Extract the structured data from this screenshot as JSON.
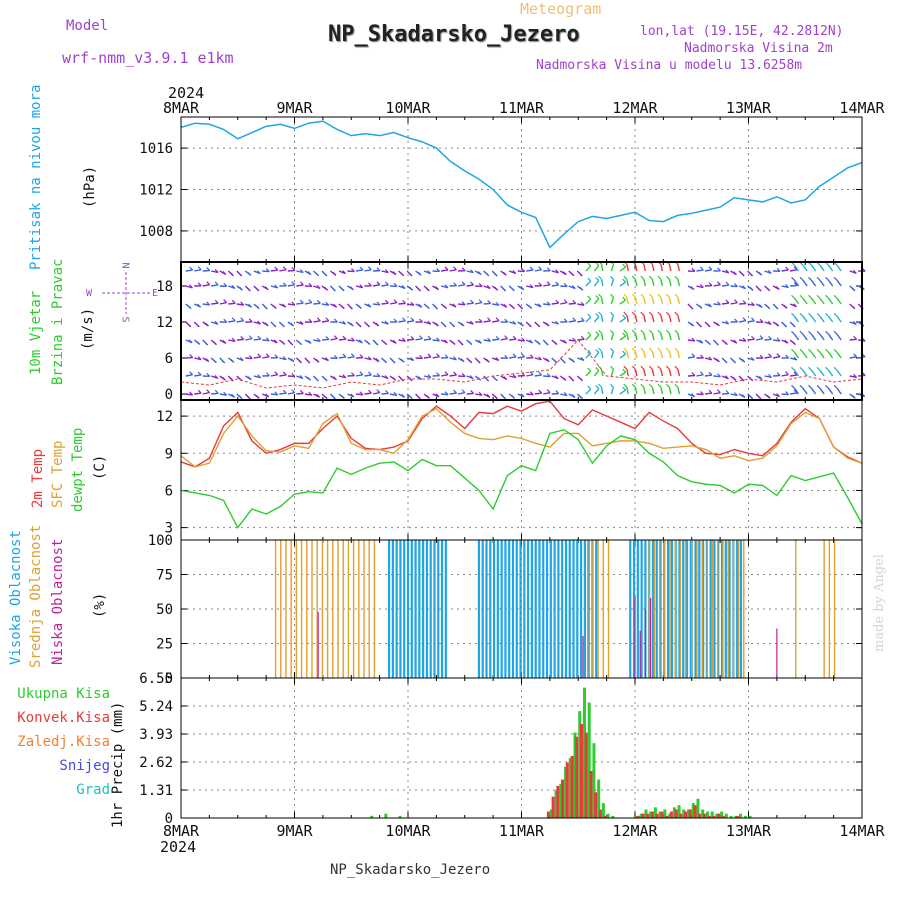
{
  "header": {
    "model_label": "Model",
    "model_name": "wrf-nmm_v3.9.1 e1km",
    "meteogram_label": "Meteogram",
    "station_title": "NP_Skadarsko_Jezero",
    "lonlat": "lon,lat (19.15E, 42.2812N)",
    "altitude": "Nadmorska Visina 2m",
    "model_altitude": "Nadmorska Visina u modelu 13.6258m",
    "footer_station": "NP_Skadarsko_Jezero",
    "watermark": "made by Angel"
  },
  "colors": {
    "pressure": "#1ea5e6",
    "temp": "#e83a3a",
    "sfc_temp": "#e0a030",
    "dewpt": "#2ecc2e",
    "high_cloud": "#1ea5e6",
    "mid_cloud": "#e0a030",
    "low_cloud": "#c0209a",
    "total_precip": "#2ecc2e",
    "conv_precip": "#e83a3a",
    "frz_precip": "#f08030",
    "snow": "#4848e0",
    "hail": "#20c0c0",
    "wind_label": "#2ecc2e",
    "wind_compass": "#a040d0"
  },
  "time_axis": {
    "year": "2024",
    "ticks": [
      "8MAR",
      "9MAR",
      "10MAR",
      "11MAR",
      "12MAR",
      "13MAR",
      "14MAR"
    ]
  },
  "chart_data": [
    {
      "type": "line",
      "ylabel_series": "Pritisak na nivou mora",
      "ylabel_unit": "(hPa)",
      "ylim": [
        1005,
        1019
      ],
      "yticks": [
        "1008",
        "1012",
        "1016"
      ],
      "ytick_values": [
        1008,
        1012,
        1016
      ],
      "x_hours": [
        0,
        3,
        6,
        9,
        12,
        15,
        18,
        21,
        24,
        27,
        30,
        33,
        36,
        39,
        42,
        45,
        48,
        51,
        54,
        57,
        60,
        63,
        66,
        69,
        72,
        75,
        78,
        81,
        84,
        87,
        90,
        93,
        96,
        99,
        102,
        105,
        108,
        111,
        114,
        117,
        120,
        123,
        126,
        129,
        132,
        135,
        138,
        141,
        144
      ],
      "series": [
        {
          "values": [
            1018,
            1018.4,
            1018.3,
            1017.8,
            1016.9,
            1017.5,
            1018.1,
            1018.3,
            1017.9,
            1018.4,
            1018.6,
            1017.8,
            1017.2,
            1017.4,
            1017.2,
            1017.5,
            1017.0,
            1016.6,
            1016.0,
            1014.7,
            1013.8,
            1013.0,
            1012.0,
            1010.5,
            1009.8,
            1009.3,
            1006.4,
            1007.7,
            1008.9,
            1009.4,
            1009.2,
            1009.5,
            1009.8,
            1009.0,
            1008.9,
            1009.5,
            1009.7,
            1010.0,
            1010.3,
            1011.2,
            1011.0,
            1010.8,
            1011.3,
            1010.7,
            1011.0,
            1012.3,
            1013.2,
            1014.1,
            1014.6
          ]
        }
      ]
    },
    {
      "type": "barbs",
      "ylabel_series": [
        "10m Vjetar",
        "Brzina i Pravac"
      ],
      "ylabel_unit": "(m/s)",
      "compass": [
        "N",
        "E",
        "W",
        "S"
      ],
      "ylim": [
        -1,
        22
      ],
      "yticks": [
        "0",
        "6",
        "12",
        "18"
      ],
      "ytick_values": [
        0,
        6,
        12,
        18
      ],
      "x_hours": [
        0,
        6,
        12,
        18,
        24,
        30,
        36,
        42,
        48,
        54,
        60,
        66,
        72,
        78,
        84,
        90,
        96,
        102,
        108,
        114,
        120,
        126,
        132,
        138,
        144
      ],
      "speed_ms": [
        2.0,
        1.5,
        2.5,
        1.0,
        1.5,
        1.0,
        2.0,
        1.5,
        2.5,
        2.5,
        2.0,
        3.0,
        3.5,
        4.0,
        9.0,
        3.0,
        2.5,
        2.0,
        2.0,
        1.5,
        2.5,
        2.0,
        3.0,
        2.0,
        2.5
      ]
    },
    {
      "type": "line",
      "ylabel_series": [
        "2m Temp",
        "SFC Temp",
        "dewpt Temp"
      ],
      "ylabel_unit": "(C)",
      "ylim": [
        2,
        13.3
      ],
      "yticks": [
        "3",
        "6",
        "9",
        "12"
      ],
      "ytick_values": [
        3,
        6,
        9,
        12
      ],
      "x_hours": [
        0,
        3,
        6,
        9,
        12,
        15,
        18,
        21,
        24,
        27,
        30,
        33,
        36,
        39,
        42,
        45,
        48,
        51,
        54,
        57,
        60,
        63,
        66,
        69,
        72,
        75,
        78,
        81,
        84,
        87,
        90,
        93,
        96,
        99,
        102,
        105,
        108,
        111,
        114,
        117,
        120,
        123,
        126,
        129,
        132,
        135,
        138,
        141,
        144
      ],
      "series": [
        {
          "name": "2m Temp",
          "values": [
            8.3,
            7.9,
            8.6,
            11.2,
            12.3,
            10.0,
            9.0,
            9.3,
            9.8,
            9.8,
            11.0,
            12.0,
            10.2,
            9.4,
            9.3,
            9.5,
            10.0,
            11.8,
            12.8,
            12.0,
            11.0,
            12.3,
            12.2,
            12.8,
            12.4,
            13.0,
            13.2,
            11.8,
            11.3,
            12.5,
            12.0,
            11.5,
            11.0,
            12.3,
            11.6,
            11.0,
            9.8,
            9.0,
            8.9,
            9.3,
            9.0,
            8.8,
            9.8,
            11.5,
            12.6,
            11.8,
            9.5,
            8.7,
            8.2
          ]
        },
        {
          "name": "SFC Temp",
          "values": [
            8.8,
            7.9,
            8.2,
            10.6,
            12.0,
            10.4,
            9.2,
            9.1,
            9.6,
            9.4,
            11.4,
            12.2,
            9.8,
            9.3,
            9.3,
            9.0,
            10.1,
            12.0,
            12.6,
            11.5,
            10.6,
            10.2,
            10.1,
            10.4,
            10.2,
            9.8,
            9.5,
            10.6,
            10.6,
            9.6,
            9.8,
            10.0,
            10.0,
            9.8,
            9.4,
            9.5,
            9.6,
            9.3,
            8.6,
            8.8,
            8.4,
            8.6,
            9.6,
            11.4,
            12.3,
            11.8,
            9.5,
            8.6,
            8.2
          ]
        },
        {
          "name": "dewpt Temp",
          "values": [
            6.0,
            5.8,
            5.6,
            5.2,
            3.0,
            4.5,
            4.1,
            4.7,
            5.7,
            5.9,
            5.8,
            7.8,
            7.3,
            7.8,
            8.2,
            8.3,
            7.6,
            8.5,
            8.0,
            8.0,
            7.0,
            6.0,
            4.5,
            7.2,
            8.0,
            7.6,
            10.6,
            10.9,
            10.1,
            8.2,
            9.6,
            10.4,
            10.1,
            9.0,
            8.3,
            7.2,
            6.7,
            6.5,
            6.4,
            5.8,
            6.5,
            6.4,
            5.6,
            7.2,
            6.8,
            7.1,
            7.4,
            5.4,
            3.3
          ]
        }
      ]
    },
    {
      "type": "bar",
      "ylabel_series": [
        "Visoka Oblacnost",
        "Srednja Oblacnost",
        "Niska Oblacnost"
      ],
      "ylabel_unit": "(%)",
      "ylim": [
        0,
        100
      ],
      "yticks": [
        "0",
        "25",
        "50",
        "75",
        "100"
      ],
      "ytick_values": [
        0,
        25,
        50,
        75,
        100
      ],
      "series": [
        {
          "name": "Visoka Oblacnost",
          "segments_hours": [
            [
              44,
              56
            ],
            [
              63,
              88
            ],
            [
              95,
              108
            ],
            [
              108,
              119
            ]
          ],
          "value": 100
        },
        {
          "name": "Srednja Oblacnost",
          "segments_hours": [
            [
              20,
              42
            ],
            [
              86,
              91
            ],
            [
              99,
              107
            ],
            [
              108,
              120
            ],
            [
              130,
              131
            ],
            [
              136,
              139
            ]
          ],
          "value": 100
        },
        {
          "name": "Niska Oblacnost",
          "segments_hours": [
            [
              29,
              29
            ],
            [
              85,
              86
            ],
            [
              96,
              100
            ],
            [
              126,
              127
            ]
          ],
          "value": 60
        }
      ]
    },
    {
      "type": "bar",
      "ylabel_series": [
        "Ukupna Kisa",
        "Konvek.Kisa",
        "Zaledj.Kisa",
        "Snijeg",
        "Grad"
      ],
      "ylabel_unit": "1hr Precip (mm)",
      "ylim": [
        0,
        6.55
      ],
      "yticks": [
        "0",
        "1.31",
        "2.62",
        "3.93",
        "5.24",
        "6.55"
      ],
      "ytick_values": [
        0,
        1.31,
        2.62,
        3.93,
        5.24,
        6.55
      ],
      "x_hours": [
        40,
        43,
        46,
        78,
        79,
        80,
        81,
        82,
        83,
        84,
        85,
        86,
        87,
        88,
        89,
        90,
        91,
        96,
        97,
        98,
        99,
        100,
        101,
        102,
        103,
        104,
        105,
        106,
        107,
        108,
        109,
        110,
        111,
        112,
        113,
        114,
        115,
        116,
        117,
        118,
        119,
        120
      ],
      "series": [
        {
          "name": "Ukupna Kisa",
          "values": [
            0.1,
            0.2,
            0.1,
            0.4,
            1.3,
            1.6,
            2.4,
            2.8,
            4.0,
            5.0,
            6.1,
            5.4,
            3.5,
            1.8,
            0.7,
            0.2,
            0.1,
            0.1,
            0.2,
            0.4,
            0.3,
            0.5,
            0.3,
            0.4,
            0.2,
            0.5,
            0.6,
            0.4,
            0.4,
            0.7,
            0.9,
            0.4,
            0.3,
            0.3,
            0.2,
            0.3,
            0.2,
            0.1,
            0.1,
            0.2,
            0.1,
            0.1
          ]
        },
        {
          "name": "Konvek.Kisa",
          "values": [
            0,
            0,
            0,
            0.3,
            1.0,
            1.5,
            1.8,
            2.6,
            2.9,
            3.8,
            4.4,
            4.0,
            2.2,
            1.2,
            0.4,
            0.1,
            0,
            0,
            0.1,
            0.2,
            0.2,
            0.3,
            0.2,
            0.3,
            0.1,
            0.3,
            0.4,
            0.2,
            0.3,
            0.4,
            0.6,
            0.2,
            0.2,
            0.1,
            0.1,
            0.2,
            0.1,
            0,
            0,
            0.1,
            0,
            0
          ]
        }
      ]
    }
  ]
}
